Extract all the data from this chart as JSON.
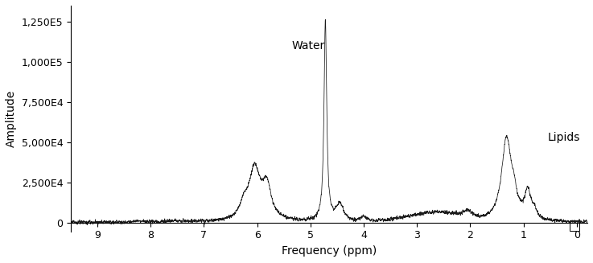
{
  "xlabel": "Frequency (ppm)",
  "ylabel": "Amplitude",
  "xlim": [
    9.5,
    -0.2
  ],
  "ylim": [
    -6000,
    135000
  ],
  "yticks": [
    0,
    25000,
    50000,
    75000,
    100000,
    125000
  ],
  "ytick_labels": [
    "0",
    "2,500E4",
    "5,000E4",
    "7,500E4",
    "1,000E5",
    "1,250E5"
  ],
  "xticks": [
    9,
    8,
    7,
    6,
    5,
    4,
    3,
    2,
    1,
    0
  ],
  "water_peak_ppm": 4.7,
  "water_peak_amp": 125000,
  "water_label": "Water",
  "lipid_peak1_ppm": 1.3,
  "lipid_peak1_amp": 51000,
  "lipid_peak2_ppm": 0.9,
  "lipid_peak2_amp": 17000,
  "lipid_label": "Lipids",
  "noise_amp": 600,
  "line_color": "#1a1a1a",
  "background_color": "#ffffff",
  "fontsize_labels": 10,
  "fontsize_ticks": 9,
  "fontsize_annotations": 10
}
